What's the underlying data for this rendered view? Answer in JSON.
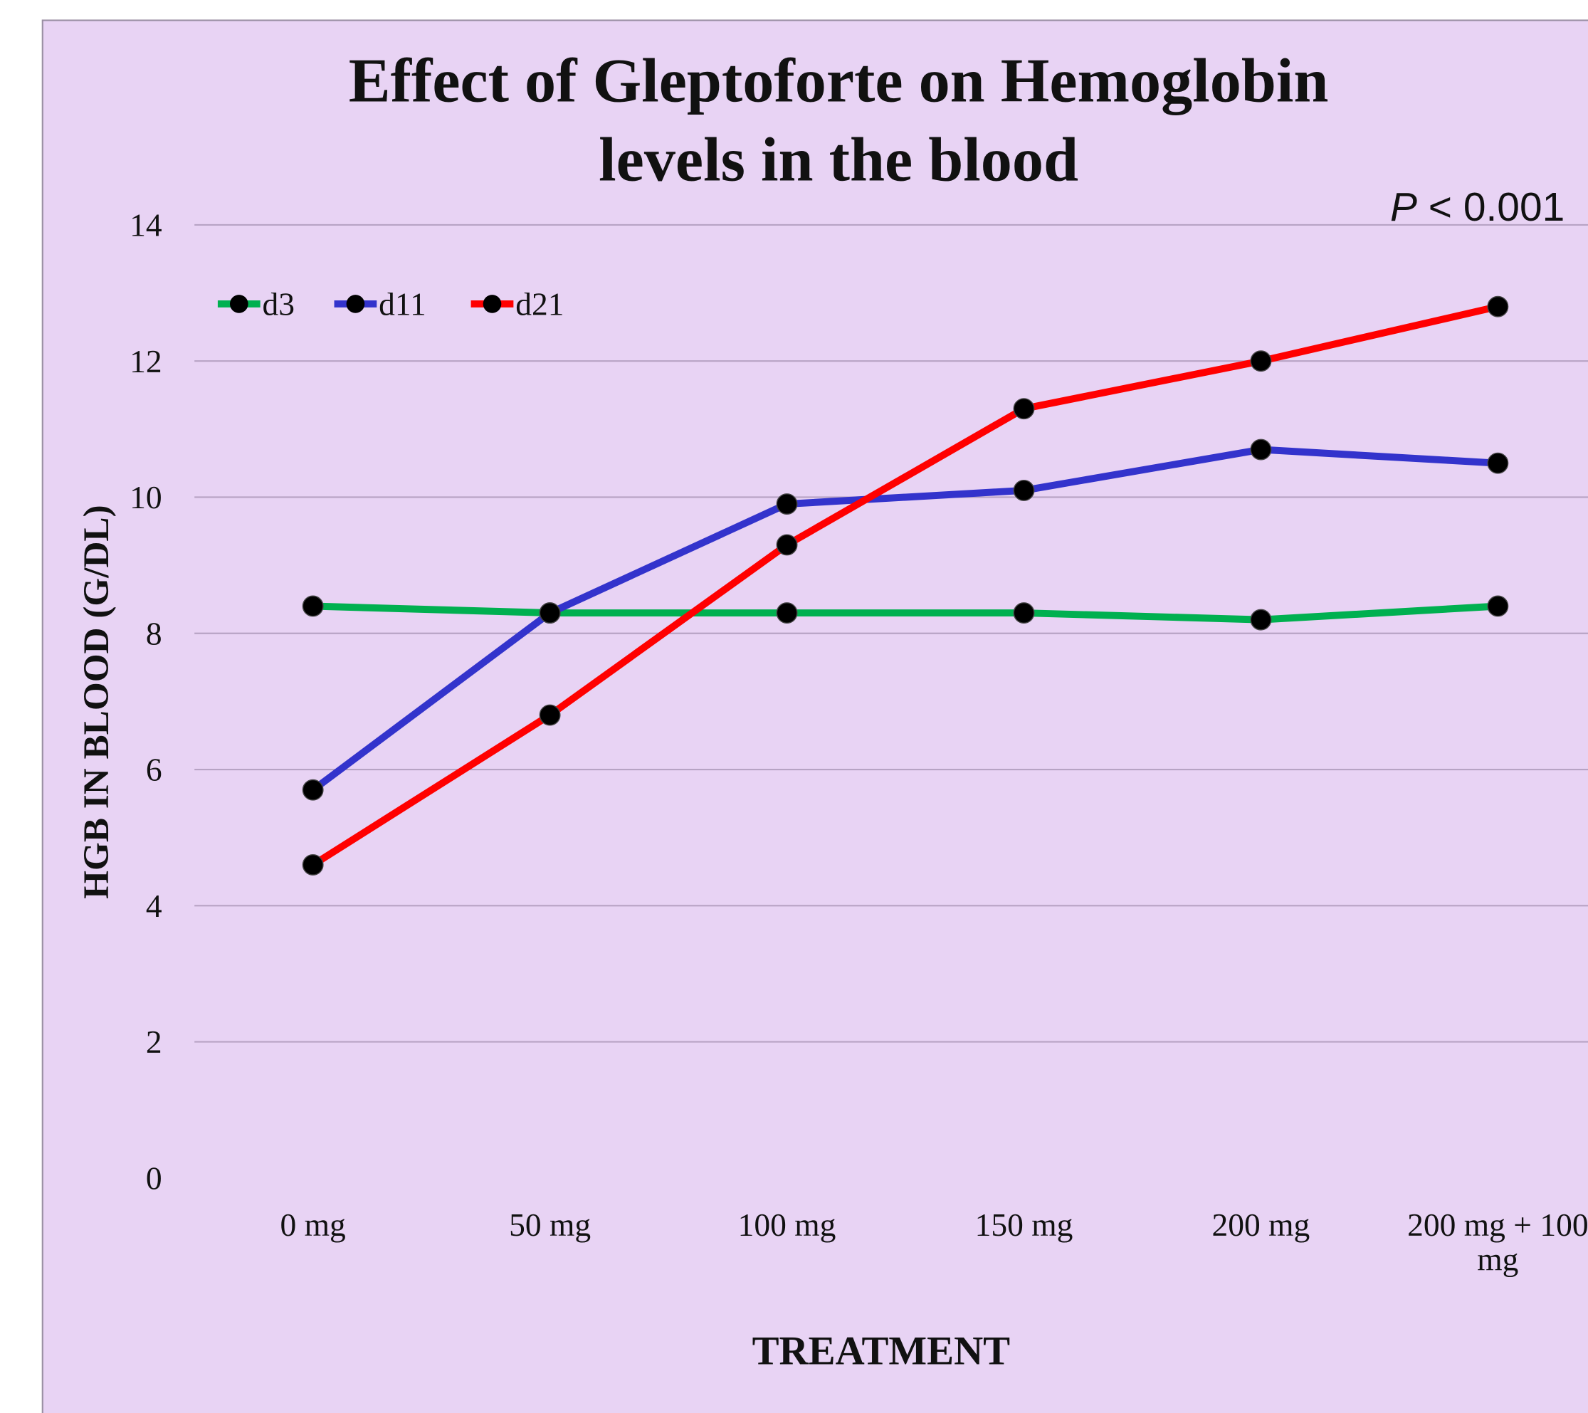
{
  "chart_data": {
    "type": "line",
    "title": "Effect of Gleptoforte on Hemoglobin levels in the blood",
    "annotation": "P < 0.001",
    "x_label": "TREATMENT",
    "y_label": "HGB IN BLOOD (G/DL)",
    "categories": [
      "0 mg",
      "50 mg",
      "100 mg",
      "150 mg",
      "200 mg",
      "200 mg + 100 mg"
    ],
    "series": [
      {
        "name": "d3",
        "color": "#00b050",
        "values": [
          8.4,
          8.3,
          8.3,
          8.3,
          8.2,
          8.4
        ]
      },
      {
        "name": "d11",
        "color": "#3333cc",
        "values": [
          5.7,
          8.3,
          9.9,
          10.1,
          10.7,
          10.5
        ]
      },
      {
        "name": "d21",
        "color": "#ff0000",
        "values": [
          4.6,
          6.8,
          9.3,
          11.3,
          12.0,
          12.8
        ]
      }
    ],
    "ylim": [
      0,
      14
    ],
    "yticks": [
      0,
      2,
      4,
      6,
      8,
      10,
      12,
      14
    ],
    "grid": true,
    "legend": "top-left"
  }
}
